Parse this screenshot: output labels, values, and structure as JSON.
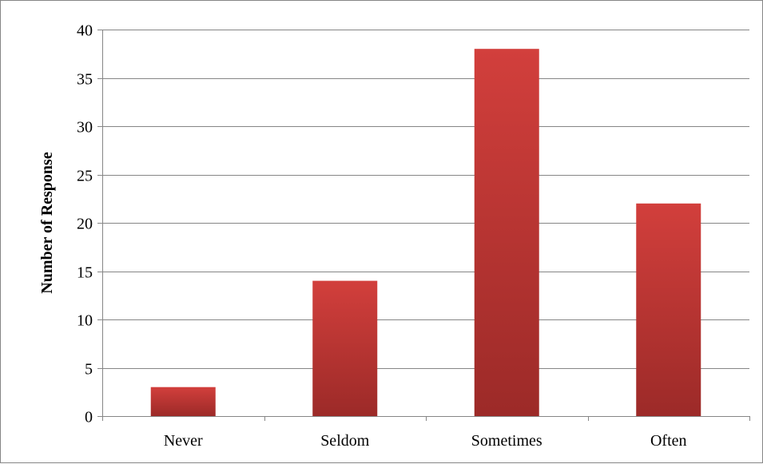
{
  "chart_data": {
    "type": "bar",
    "title": "",
    "xlabel": "",
    "ylabel": "Number of Response",
    "categories": [
      "Never",
      "Seldom",
      "Sometimes",
      "Often"
    ],
    "values": [
      3,
      14,
      38,
      22
    ],
    "ylim": [
      0,
      40
    ],
    "yticks": [
      0,
      5,
      10,
      15,
      20,
      25,
      30,
      35,
      40
    ],
    "grid": true,
    "legend": "none",
    "bar_color_top": "#d23f3c",
    "bar_color_bottom": "#9c2a28"
  }
}
